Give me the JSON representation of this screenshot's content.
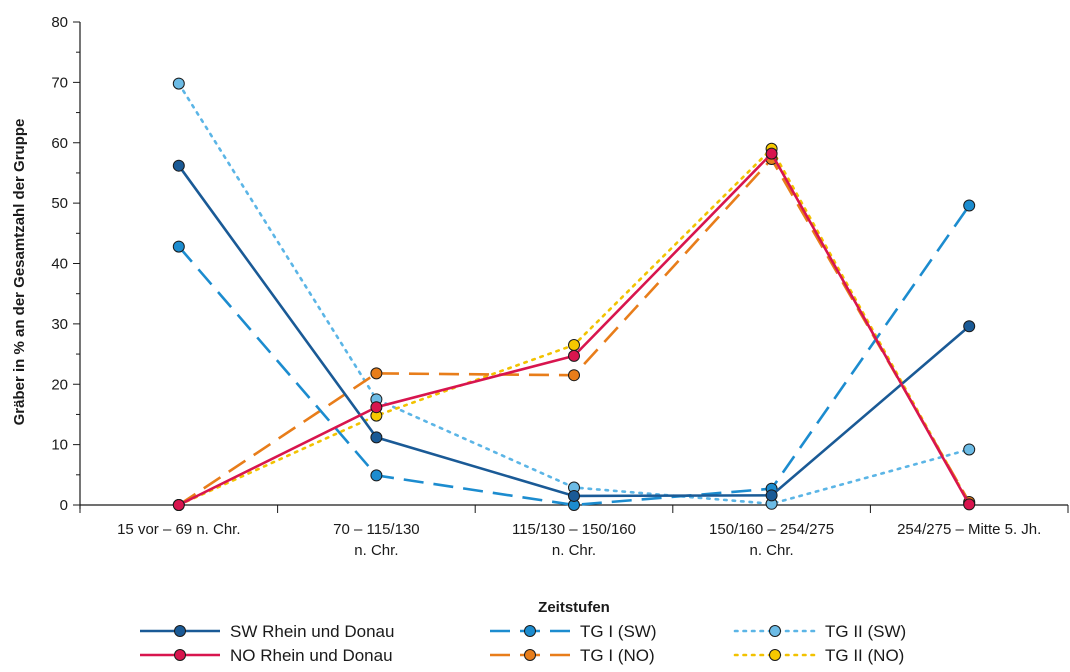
{
  "chart_data": {
    "type": "line",
    "xlabel": "Zeitstufen",
    "ylabel": "Gräber in % an der Gesamtzahl der Gruppe",
    "ylim": [
      0,
      80
    ],
    "yticks": [
      0,
      10,
      20,
      30,
      40,
      50,
      60,
      70,
      80
    ],
    "grid": false,
    "legend_position": "bottom",
    "categories": [
      [
        "15 vor – 69 n. Chr."
      ],
      [
        "70 – 115/130",
        "n. Chr."
      ],
      [
        "115/130 – 150/160",
        "n. Chr."
      ],
      [
        "150/160 – 254/275",
        "n. Chr."
      ],
      [
        "254/275 – Mitte 5. Jh."
      ]
    ],
    "series": [
      {
        "name": "SW Rhein und Donau",
        "values": [
          56.2,
          11.2,
          1.5,
          1.6,
          29.6
        ],
        "color": "#1a5a96",
        "marker": "#1a5a96",
        "style": "solid"
      },
      {
        "name": "NO Rhein und Donau",
        "values": [
          0,
          16.2,
          24.7,
          58.2,
          0.1
        ],
        "color": "#d8154e",
        "marker": "#d8154e",
        "style": "solid"
      },
      {
        "name": "TG I (SW)",
        "values": [
          42.8,
          4.9,
          0,
          2.7,
          49.6
        ],
        "color": "#1c8ccf",
        "marker": "#1c8ccf",
        "style": "dashed"
      },
      {
        "name": "TG I (NO)",
        "values": [
          0,
          21.8,
          21.5,
          57.3,
          0.5
        ],
        "color": "#e87d1a",
        "marker": "#e87d1a",
        "style": "dashed"
      },
      {
        "name": "TG II (SW)",
        "values": [
          69.8,
          17.5,
          2.9,
          0.2,
          9.2
        ],
        "color": "#5bb5e6",
        "marker": "#6cbbe5",
        "style": "dotted"
      },
      {
        "name": "TG II (NO)",
        "values": [
          0,
          14.8,
          26.5,
          59.0,
          0.3
        ],
        "color": "#f2c200",
        "marker": "#f6c800",
        "style": "dotted"
      }
    ]
  }
}
